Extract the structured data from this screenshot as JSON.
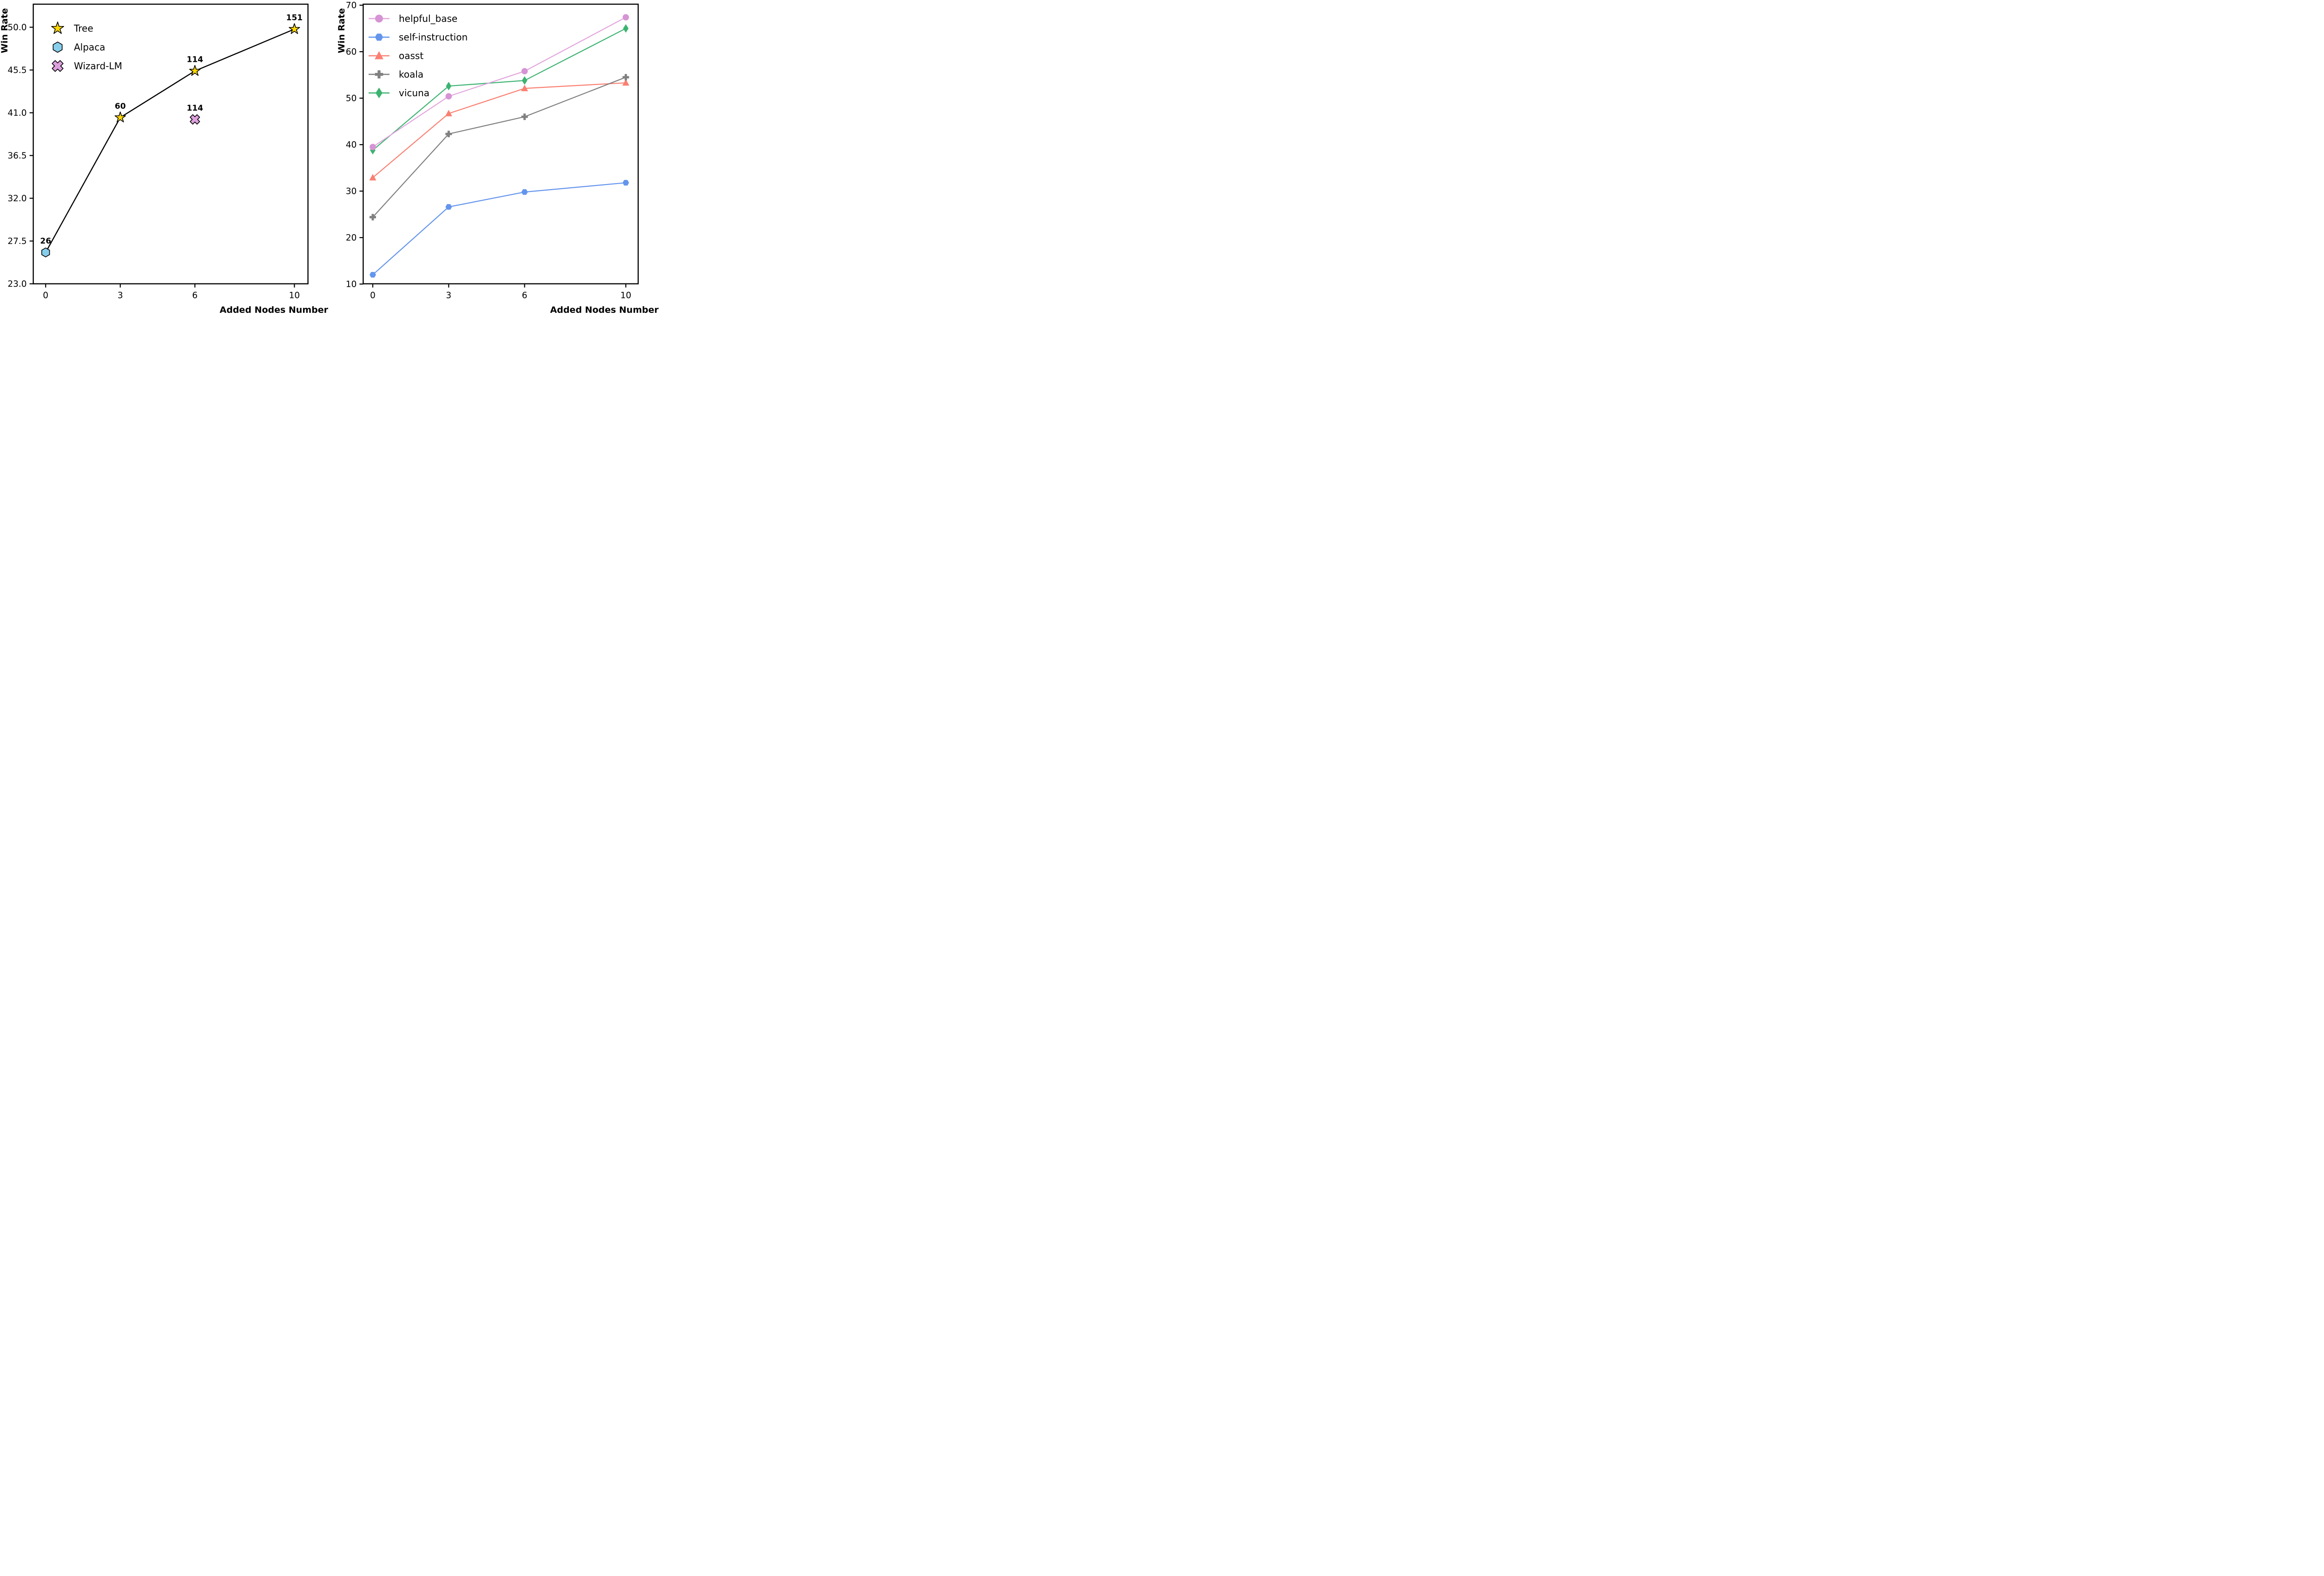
{
  "figure": {
    "background": "#ffffff"
  },
  "chart_data": [
    {
      "id": "tree-growth",
      "type": "line",
      "title": "",
      "xlabel": "Added Nodes Number",
      "ylabel": "Win Rate",
      "x_tick_labels": [
        "0",
        "3",
        "6",
        "10"
      ],
      "x_tick_values": [
        0,
        3,
        6,
        10
      ],
      "y_tick_labels": [
        "23.0",
        "27.5",
        "32.0",
        "36.5",
        "41.0",
        "45.5",
        "50.0"
      ],
      "y_tick_values": [
        23.0,
        27.5,
        32.0,
        36.5,
        41.0,
        45.5,
        50.0
      ],
      "xlim": [
        -0.5,
        10.55
      ],
      "ylim": [
        23.0,
        52.4
      ],
      "grid": false,
      "legend_position": "upper-left",
      "legend": [
        {
          "label": "Tree",
          "marker": "star",
          "fill": "#FFD700",
          "edge": "#000000"
        },
        {
          "label": "Alpaca",
          "marker": "hexagon",
          "fill": "#87CEEB",
          "edge": "#000000"
        },
        {
          "label": "Wizard-LM",
          "marker": "x-cross",
          "fill": "#DDA0DD",
          "edge": "#000000"
        }
      ],
      "line": {
        "color": "#000000",
        "x": [
          0,
          3,
          6,
          10
        ],
        "y": [
          26.3,
          40.5,
          45.4,
          49.8
        ]
      },
      "points": [
        {
          "series": "Alpaca",
          "x": 0,
          "y": 26.3,
          "annotation": "26",
          "marker": "hexagon",
          "fill": "#87CEEB",
          "edge": "#000000"
        },
        {
          "series": "Tree",
          "x": 3,
          "y": 40.5,
          "annotation": "60",
          "marker": "star",
          "fill": "#FFD700",
          "edge": "#000000"
        },
        {
          "series": "Tree",
          "x": 6,
          "y": 45.4,
          "annotation": "114",
          "marker": "star",
          "fill": "#FFD700",
          "edge": "#000000"
        },
        {
          "series": "Tree",
          "x": 10,
          "y": 49.8,
          "annotation": "151",
          "marker": "star",
          "fill": "#FFD700",
          "edge": "#000000"
        },
        {
          "series": "Wizard-LM",
          "x": 6,
          "y": 40.3,
          "annotation": "114",
          "marker": "x-cross",
          "fill": "#DDA0DD",
          "edge": "#000000"
        }
      ]
    },
    {
      "id": "eval-datasets",
      "type": "line",
      "title": "",
      "xlabel": "Added Nodes Number",
      "ylabel": "Win Rate",
      "x": [
        0,
        3,
        6,
        10
      ],
      "x_tick_labels": [
        "0",
        "3",
        "6",
        "10"
      ],
      "x_tick_values": [
        0,
        3,
        6,
        10
      ],
      "y_tick_labels": [
        "10",
        "20",
        "30",
        "40",
        "50",
        "60",
        "70"
      ],
      "y_tick_values": [
        10,
        20,
        30,
        40,
        50,
        60,
        70
      ],
      "xlim": [
        -0.5,
        10.55
      ],
      "ylim": [
        10,
        70.2
      ],
      "grid": false,
      "legend_position": "upper-left",
      "series": [
        {
          "name": "helpful_base",
          "marker": "circle",
          "color": "#D694D4",
          "line_color": "#E2A6DE",
          "values": [
            39.5,
            50.4,
            55.8,
            67.4
          ]
        },
        {
          "name": "self-instruction",
          "marker": "hexagon-flat",
          "color": "#6495ED",
          "line_color": "#6495ED",
          "values": [
            12.0,
            26.6,
            29.8,
            31.8
          ]
        },
        {
          "name": "oasst",
          "marker": "triangle-up",
          "color": "#FA8072",
          "line_color": "#FA8072",
          "values": [
            32.9,
            46.7,
            52.1,
            53.3
          ]
        },
        {
          "name": "koala",
          "marker": "plus",
          "color": "#808080",
          "line_color": "#808080",
          "values": [
            24.4,
            42.3,
            46.0,
            54.5
          ]
        },
        {
          "name": "vicuna",
          "marker": "diamond",
          "color": "#3CB371",
          "line_color": "#3CB371",
          "values": [
            38.8,
            52.6,
            53.8,
            65.0
          ]
        }
      ]
    }
  ]
}
